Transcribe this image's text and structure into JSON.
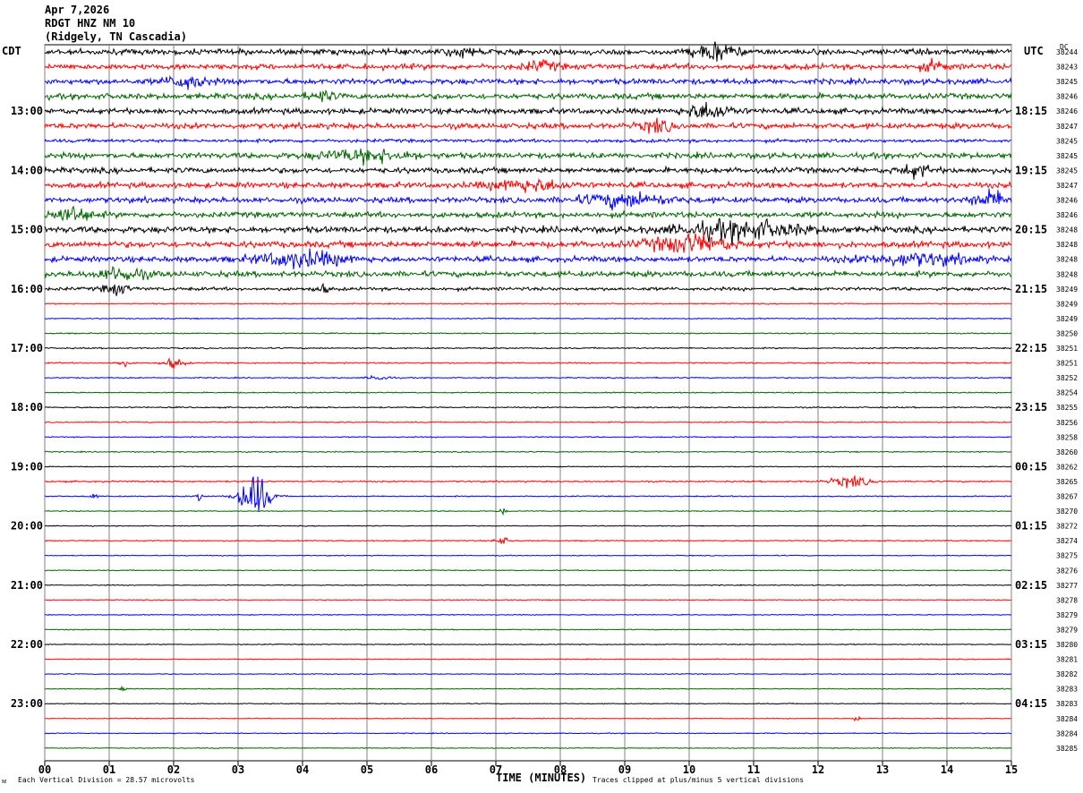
{
  "header": {
    "date": "Apr 7,2026",
    "station": "RDGT HNZ NM 10",
    "location": "(Ridgely, TN Cascadia)"
  },
  "left_tz": "CDT",
  "right_tz": "UTC",
  "dc_label": "DC",
  "footer": {
    "vertical_division": "Each Vertical Division =   28.57 microvolts",
    "xlabel": "TIME (MINUTES)",
    "clip_note": "Traces clipped at plus/minus 5 vertical divisions",
    "corner_mark": "ᴍ"
  },
  "colors": {
    "cycle": [
      "#000000",
      "#ff0000",
      "#0000ff",
      "#006400"
    ],
    "grid": "#808080"
  },
  "chart_data": {
    "type": "line",
    "title": "RDGT HNZ NM 10",
    "xlabel": "TIME (MINUTES)",
    "xlim": [
      0,
      15
    ],
    "x_ticks": [
      "00",
      "01",
      "02",
      "03",
      "04",
      "05",
      "06",
      "07",
      "08",
      "09",
      "10",
      "11",
      "12",
      "13",
      "14",
      "15"
    ],
    "left_hour_labels": [
      "13:00",
      "14:00",
      "15:00",
      "16:00",
      "17:00",
      "18:00",
      "19:00",
      "20:00",
      "21:00",
      "22:00",
      "23:00"
    ],
    "right_hour_labels": [
      "18:15",
      "19:15",
      "20:15",
      "21:15",
      "22:15",
      "23:15",
      "00:15",
      "01:15",
      "02:15",
      "03:15",
      "04:15"
    ],
    "trace_count": 48,
    "dc_offsets": [
      "38244",
      "38243",
      "38245",
      "38246",
      "38246",
      "38247",
      "38245",
      "38245",
      "38245",
      "38247",
      "38246",
      "38246",
      "38248",
      "38248",
      "38248",
      "38248",
      "38249",
      "38249",
      "38249",
      "38250",
      "38251",
      "38251",
      "38252",
      "38254",
      "38255",
      "38256",
      "38258",
      "38260",
      "38262",
      "38265",
      "38267",
      "38270",
      "38272",
      "38274",
      "38275",
      "38276",
      "38277",
      "38278",
      "38279",
      "38279",
      "38280",
      "38281",
      "38282",
      "38283",
      "38283",
      "38284",
      "38284",
      "38285"
    ],
    "noise_levels": [
      2.5,
      2.5,
      2.5,
      2.5,
      2.5,
      2.5,
      1.5,
      2.5,
      2.5,
      2.5,
      2.5,
      2.5,
      2.8,
      2.8,
      2.5,
      2.5,
      1.5,
      0.5,
      0.5,
      0.5,
      0.6,
      0.6,
      0.5,
      0.5,
      0.6,
      0.5,
      0.5,
      0.5,
      0.4,
      0.7,
      0.5,
      0.4,
      0.4,
      0.5,
      0.4,
      0.4,
      0.4,
      0.4,
      0.4,
      0.4,
      0.4,
      0.4,
      0.4,
      0.4,
      0.4,
      0.4,
      0.4,
      0.4
    ],
    "events": [
      {
        "trace": 0,
        "minute": 10.4,
        "amp": 8,
        "dur": 0.6
      },
      {
        "trace": 0,
        "minute": 6.5,
        "amp": 3,
        "dur": 0.6
      },
      {
        "trace": 1,
        "minute": 7.7,
        "amp": 4,
        "dur": 0.5
      },
      {
        "trace": 1,
        "minute": 13.8,
        "amp": 4,
        "dur": 0.4
      },
      {
        "trace": 2,
        "minute": 2.2,
        "amp": 6,
        "dur": 0.6
      },
      {
        "trace": 3,
        "minute": 4.3,
        "amp": 4,
        "dur": 0.4
      },
      {
        "trace": 4,
        "minute": 10.3,
        "amp": 7,
        "dur": 0.7
      },
      {
        "trace": 5,
        "minute": 9.5,
        "amp": 5,
        "dur": 0.5
      },
      {
        "trace": 7,
        "minute": 5.0,
        "amp": 5,
        "dur": 1.4
      },
      {
        "trace": 8,
        "minute": 13.5,
        "amp": 5,
        "dur": 0.5
      },
      {
        "trace": 9,
        "minute": 7.5,
        "amp": 5,
        "dur": 1.2
      },
      {
        "trace": 10,
        "minute": 9.0,
        "amp": 6,
        "dur": 1.3
      },
      {
        "trace": 10,
        "minute": 14.7,
        "amp": 7,
        "dur": 0.6
      },
      {
        "trace": 11,
        "minute": 0.4,
        "amp": 7,
        "dur": 0.6
      },
      {
        "trace": 12,
        "minute": 10.8,
        "amp": 8,
        "dur": 1.8
      },
      {
        "trace": 13,
        "minute": 10.0,
        "amp": 8,
        "dur": 1.2
      },
      {
        "trace": 14,
        "minute": 4.0,
        "amp": 7,
        "dur": 1.3
      },
      {
        "trace": 14,
        "minute": 13.5,
        "amp": 5,
        "dur": 1.6
      },
      {
        "trace": 15,
        "minute": 1.2,
        "amp": 6,
        "dur": 0.7
      },
      {
        "trace": 16,
        "minute": 1.1,
        "amp": 5,
        "dur": 0.4
      },
      {
        "trace": 16,
        "minute": 4.3,
        "amp": 4,
        "dur": 0.2
      },
      {
        "trace": 21,
        "minute": 2.0,
        "amp": 5,
        "dur": 0.3
      },
      {
        "trace": 21,
        "minute": 1.2,
        "amp": 3,
        "dur": 0.2
      },
      {
        "trace": 22,
        "minute": 5.2,
        "amp": 3,
        "dur": 0.3
      },
      {
        "trace": 29,
        "minute": 12.5,
        "amp": 5,
        "dur": 0.6
      },
      {
        "trace": 30,
        "minute": 3.25,
        "amp": 22,
        "dur": 0.45
      },
      {
        "trace": 30,
        "minute": 2.4,
        "amp": 4,
        "dur": 0.1
      },
      {
        "trace": 30,
        "minute": 0.75,
        "amp": 4,
        "dur": 0.1
      },
      {
        "trace": 31,
        "minute": 7.1,
        "amp": 4,
        "dur": 0.1
      },
      {
        "trace": 33,
        "minute": 7.1,
        "amp": 4,
        "dur": 0.2
      },
      {
        "trace": 43,
        "minute": 1.2,
        "amp": 3,
        "dur": 0.1
      },
      {
        "trace": 45,
        "minute": 12.6,
        "amp": 3,
        "dur": 0.1
      }
    ]
  }
}
